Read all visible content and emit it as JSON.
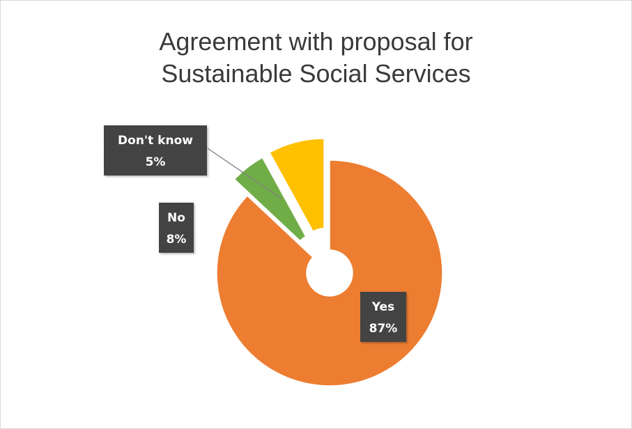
{
  "chart_data": {
    "type": "pie",
    "title": "Agreement with proposal for Sustainable Social Services",
    "title_lines": [
      "Agreement with proposal for",
      "Sustainable Social Services"
    ],
    "slices": [
      {
        "label": "Yes",
        "value": 87,
        "value_label": "87%",
        "color": "#ED7D31"
      },
      {
        "label": "Don't know",
        "value": 5,
        "value_label": "5%",
        "color": "#70AD47"
      },
      {
        "label": "No",
        "value": 8,
        "value_label": "8%",
        "color": "#FFC000"
      }
    ],
    "label_box_color": "#404040",
    "legend": "none"
  }
}
